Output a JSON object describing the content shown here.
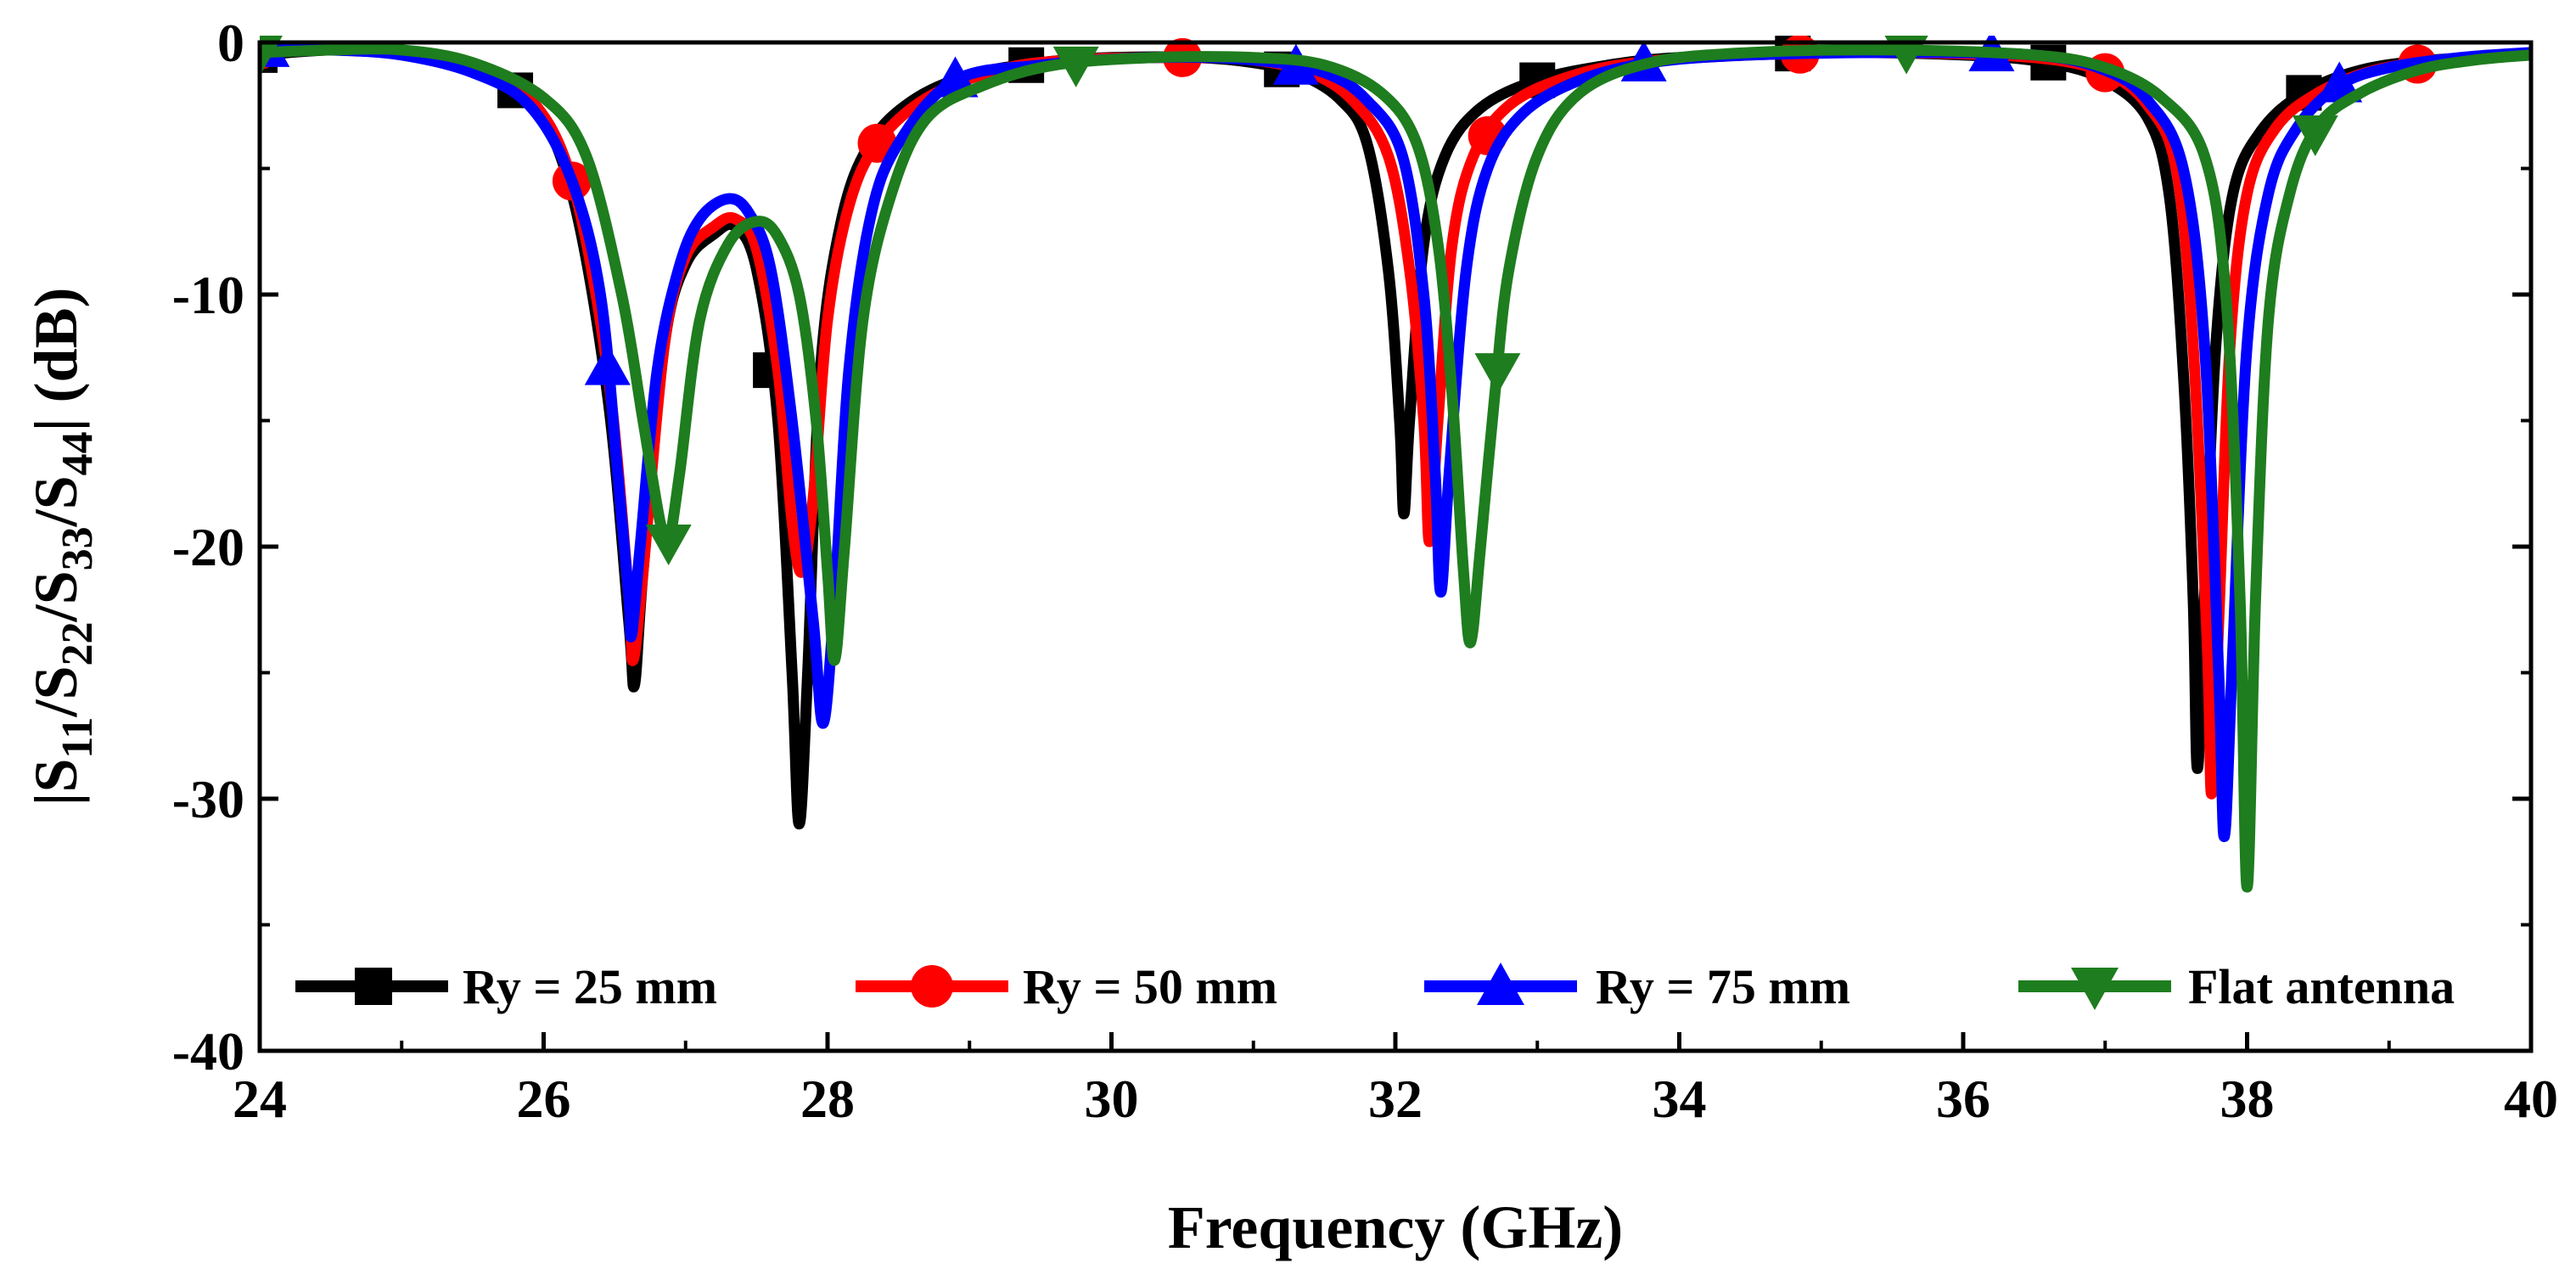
{
  "chart_data": {
    "type": "line",
    "title": "",
    "xlabel": "Frequency (GHz)",
    "ylabel": {
      "p1": "|S",
      "s1": "11",
      "p2": "/S",
      "s2": "22",
      "p3": "/S",
      "s3": "33",
      "p4": "/S",
      "s4": "44",
      "p5": "| (dB)"
    },
    "xlim": [
      24,
      40
    ],
    "ylim": [
      -40,
      0
    ],
    "xticks": [
      24,
      26,
      28,
      30,
      32,
      34,
      36,
      38,
      40
    ],
    "yticks": [
      0,
      -10,
      -20,
      -30,
      -40
    ],
    "xtick_labels": [
      "24",
      "26",
      "28",
      "30",
      "32",
      "34",
      "36",
      "38",
      "40"
    ],
    "ytick_labels": [
      "0",
      "-10",
      "-20",
      "-30",
      "-40"
    ],
    "grid": false,
    "legend_position": "bottom",
    "series": [
      {
        "name": "Ry = 25 mm",
        "color": "#000000",
        "marker": "square",
        "marker_x": [
          24.0,
          25.8,
          27.6,
          29.4,
          31.2,
          33.0,
          34.8,
          36.6,
          38.4
        ],
        "points": [
          [
            24.0,
            -0.5
          ],
          [
            24.5,
            -0.3
          ],
          [
            25.0,
            -0.4
          ],
          [
            25.5,
            -1.0
          ],
          [
            25.9,
            -2.2
          ],
          [
            26.2,
            -6
          ],
          [
            26.45,
            -14
          ],
          [
            26.6,
            -23
          ],
          [
            26.64,
            -25.5
          ],
          [
            26.7,
            -21
          ],
          [
            26.85,
            -12
          ],
          [
            27.0,
            -8.8
          ],
          [
            27.2,
            -7.6
          ],
          [
            27.35,
            -7.3
          ],
          [
            27.5,
            -9
          ],
          [
            27.65,
            -15
          ],
          [
            27.75,
            -25
          ],
          [
            27.8,
            -31
          ],
          [
            27.86,
            -25
          ],
          [
            27.95,
            -13
          ],
          [
            28.1,
            -7
          ],
          [
            28.3,
            -4
          ],
          [
            28.6,
            -2.3
          ],
          [
            29.0,
            -1.3
          ],
          [
            29.5,
            -0.8
          ],
          [
            30.0,
            -0.6
          ],
          [
            30.6,
            -0.6
          ],
          [
            31.0,
            -0.8
          ],
          [
            31.3,
            -1.2
          ],
          [
            31.6,
            -2.2
          ],
          [
            31.8,
            -4
          ],
          [
            31.95,
            -9
          ],
          [
            32.03,
            -15
          ],
          [
            32.06,
            -18.7
          ],
          [
            32.1,
            -15
          ],
          [
            32.2,
            -8
          ],
          [
            32.35,
            -4.5
          ],
          [
            32.6,
            -2.6
          ],
          [
            33.0,
            -1.5
          ],
          [
            33.5,
            -0.9
          ],
          [
            34.0,
            -0.6
          ],
          [
            35.0,
            -0.4
          ],
          [
            36.0,
            -0.5
          ],
          [
            36.6,
            -0.8
          ],
          [
            37.0,
            -1.5
          ],
          [
            37.3,
            -3
          ],
          [
            37.45,
            -6
          ],
          [
            37.55,
            -13
          ],
          [
            37.62,
            -22
          ],
          [
            37.65,
            -28.8
          ],
          [
            37.7,
            -22
          ],
          [
            37.78,
            -12
          ],
          [
            37.9,
            -6
          ],
          [
            38.1,
            -3.5
          ],
          [
            38.4,
            -2
          ],
          [
            38.8,
            -1.1
          ],
          [
            39.3,
            -0.7
          ],
          [
            40.0,
            -0.5
          ]
        ]
      },
      {
        "name": "Ry = 50 mm",
        "color": "#ff0000",
        "marker": "circle",
        "marker_x": [
          24.0,
          26.2,
          28.35,
          30.5,
          32.65,
          34.85,
          37.0,
          39.2
        ],
        "points": [
          [
            24.0,
            -0.3
          ],
          [
            24.5,
            -0.3
          ],
          [
            25.0,
            -0.4
          ],
          [
            25.5,
            -1.0
          ],
          [
            25.9,
            -2.2
          ],
          [
            26.2,
            -5.5
          ],
          [
            26.45,
            -13
          ],
          [
            26.6,
            -22
          ],
          [
            26.63,
            -24.5
          ],
          [
            26.7,
            -21
          ],
          [
            26.85,
            -12
          ],
          [
            27.0,
            -8.5
          ],
          [
            27.2,
            -7.3
          ],
          [
            27.35,
            -7.0
          ],
          [
            27.5,
            -8.2
          ],
          [
            27.65,
            -13
          ],
          [
            27.75,
            -19
          ],
          [
            27.82,
            -21
          ],
          [
            27.9,
            -18
          ],
          [
            28.0,
            -11
          ],
          [
            28.15,
            -6.5
          ],
          [
            28.35,
            -4
          ],
          [
            28.7,
            -2.2
          ],
          [
            29.2,
            -1.1
          ],
          [
            29.7,
            -0.7
          ],
          [
            30.5,
            -0.6
          ],
          [
            31.0,
            -0.7
          ],
          [
            31.4,
            -1.2
          ],
          [
            31.7,
            -2.3
          ],
          [
            31.95,
            -4.5
          ],
          [
            32.1,
            -9
          ],
          [
            32.2,
            -15
          ],
          [
            32.24,
            -19.8
          ],
          [
            32.3,
            -15
          ],
          [
            32.4,
            -8
          ],
          [
            32.55,
            -4.5
          ],
          [
            32.8,
            -2.5
          ],
          [
            33.2,
            -1.4
          ],
          [
            33.7,
            -0.8
          ],
          [
            34.5,
            -0.5
          ],
          [
            35.5,
            -0.4
          ],
          [
            36.5,
            -0.6
          ],
          [
            37.0,
            -1.2
          ],
          [
            37.3,
            -2.5
          ],
          [
            37.5,
            -5
          ],
          [
            37.62,
            -12
          ],
          [
            37.72,
            -24
          ],
          [
            37.75,
            -29.8
          ],
          [
            37.8,
            -23
          ],
          [
            37.88,
            -12
          ],
          [
            38.0,
            -6
          ],
          [
            38.2,
            -3.4
          ],
          [
            38.5,
            -2
          ],
          [
            38.9,
            -1.1
          ],
          [
            39.4,
            -0.7
          ],
          [
            40.0,
            -0.5
          ]
        ]
      },
      {
        "name": "Ry = 75 mm",
        "color": "#0000ff",
        "marker": "triangle-up",
        "marker_x": [
          24.05,
          26.45,
          28.9,
          31.3,
          33.75,
          36.2,
          38.65
        ],
        "points": [
          [
            24.0,
            -0.3
          ],
          [
            24.5,
            -0.3
          ],
          [
            25.0,
            -0.5
          ],
          [
            25.5,
            -1.2
          ],
          [
            25.9,
            -2.5
          ],
          [
            26.2,
            -5.5
          ],
          [
            26.4,
            -10
          ],
          [
            26.52,
            -17
          ],
          [
            26.6,
            -22
          ],
          [
            26.62,
            -23.5
          ],
          [
            26.68,
            -20
          ],
          [
            26.8,
            -13
          ],
          [
            26.95,
            -9
          ],
          [
            27.1,
            -7
          ],
          [
            27.3,
            -6.2
          ],
          [
            27.45,
            -6.8
          ],
          [
            27.6,
            -9
          ],
          [
            27.75,
            -15
          ],
          [
            27.9,
            -23
          ],
          [
            27.97,
            -27
          ],
          [
            28.05,
            -22
          ],
          [
            28.15,
            -13
          ],
          [
            28.3,
            -7
          ],
          [
            28.5,
            -4
          ],
          [
            28.9,
            -1.5
          ],
          [
            29.5,
            -0.9
          ],
          [
            30.3,
            -0.6
          ],
          [
            31.0,
            -0.7
          ],
          [
            31.5,
            -1.2
          ],
          [
            31.8,
            -2.3
          ],
          [
            32.05,
            -4.5
          ],
          [
            32.2,
            -10
          ],
          [
            32.28,
            -17
          ],
          [
            32.32,
            -21.8
          ],
          [
            32.38,
            -17
          ],
          [
            32.5,
            -9
          ],
          [
            32.65,
            -5
          ],
          [
            32.9,
            -2.8
          ],
          [
            33.3,
            -1.5
          ],
          [
            33.8,
            -0.8
          ],
          [
            34.5,
            -0.5
          ],
          [
            35.5,
            -0.4
          ],
          [
            36.5,
            -0.5
          ],
          [
            37.0,
            -1.1
          ],
          [
            37.3,
            -2.3
          ],
          [
            37.55,
            -5
          ],
          [
            37.7,
            -12
          ],
          [
            37.8,
            -25
          ],
          [
            37.84,
            -31.5
          ],
          [
            37.9,
            -24
          ],
          [
            38.0,
            -12
          ],
          [
            38.15,
            -6
          ],
          [
            38.35,
            -3.4
          ],
          [
            38.65,
            -1.7
          ],
          [
            39.0,
            -1
          ],
          [
            39.5,
            -0.6
          ],
          [
            40.0,
            -0.4
          ]
        ]
      },
      {
        "name": "Flat antenna",
        "color": "#1e7d1e",
        "marker": "triangle-down",
        "marker_x": [
          24.0,
          26.88,
          29.75,
          32.72,
          35.6,
          38.48
        ],
        "points": [
          [
            24.0,
            -0.4
          ],
          [
            24.5,
            -0.3
          ],
          [
            25.0,
            -0.3
          ],
          [
            25.5,
            -0.8
          ],
          [
            26.0,
            -2.2
          ],
          [
            26.3,
            -4.5
          ],
          [
            26.55,
            -10
          ],
          [
            26.7,
            -15
          ],
          [
            26.82,
            -19
          ],
          [
            26.88,
            -19.8
          ],
          [
            26.96,
            -17
          ],
          [
            27.1,
            -11
          ],
          [
            27.3,
            -8
          ],
          [
            27.5,
            -7.1
          ],
          [
            27.65,
            -7.7
          ],
          [
            27.8,
            -10
          ],
          [
            27.92,
            -15
          ],
          [
            28.0,
            -21
          ],
          [
            28.05,
            -24.5
          ],
          [
            28.12,
            -20
          ],
          [
            28.25,
            -11
          ],
          [
            28.45,
            -6
          ],
          [
            28.7,
            -3
          ],
          [
            29.1,
            -1.7
          ],
          [
            29.6,
            -0.9
          ],
          [
            30.3,
            -0.6
          ],
          [
            31.0,
            -0.6
          ],
          [
            31.5,
            -0.9
          ],
          [
            31.9,
            -2
          ],
          [
            32.15,
            -4
          ],
          [
            32.3,
            -8
          ],
          [
            32.4,
            -14
          ],
          [
            32.48,
            -21
          ],
          [
            32.53,
            -23.8
          ],
          [
            32.6,
            -20
          ],
          [
            32.7,
            -14
          ],
          [
            32.8,
            -9
          ],
          [
            33.0,
            -4.5
          ],
          [
            33.3,
            -2
          ],
          [
            33.8,
            -0.8
          ],
          [
            34.5,
            -0.4
          ],
          [
            35.5,
            -0.3
          ],
          [
            36.5,
            -0.5
          ],
          [
            37.0,
            -1
          ],
          [
            37.4,
            -2.2
          ],
          [
            37.7,
            -4.5
          ],
          [
            37.85,
            -10
          ],
          [
            37.95,
            -22
          ],
          [
            38.0,
            -33.5
          ],
          [
            38.06,
            -22
          ],
          [
            38.15,
            -11
          ],
          [
            38.3,
            -6
          ],
          [
            38.5,
            -3.3
          ],
          [
            38.8,
            -2
          ],
          [
            39.2,
            -1.1
          ],
          [
            39.6,
            -0.7
          ],
          [
            40.0,
            -0.5
          ]
        ]
      }
    ]
  }
}
